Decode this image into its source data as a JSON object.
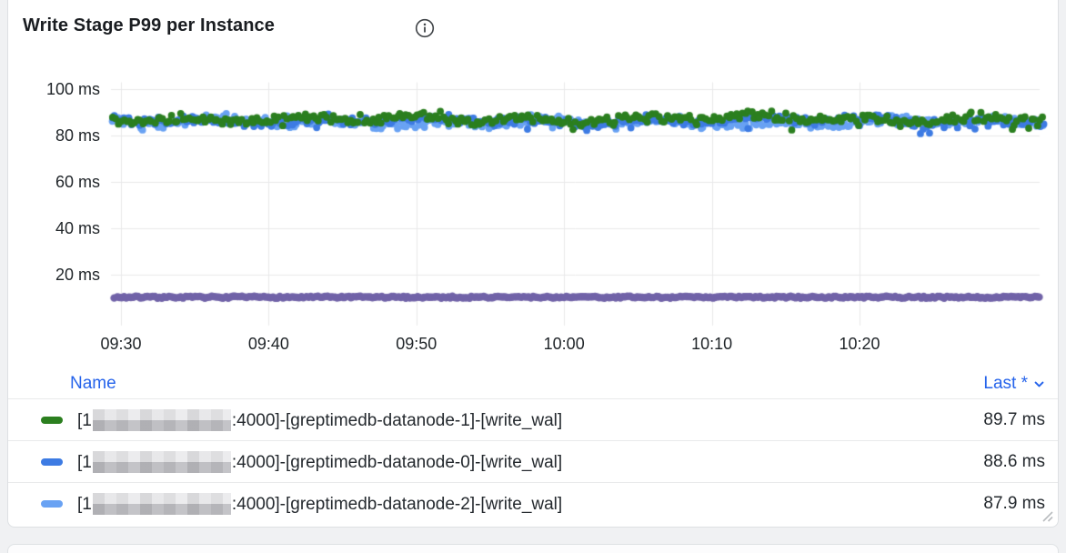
{
  "panel": {
    "title": "Write Stage P99 per Instance",
    "info_icon": "info-circle"
  },
  "chart_data": {
    "type": "scatter",
    "title": "Write Stage P99 per Instance",
    "unit": "ms",
    "grid": true,
    "ylim": [
      0,
      107
    ],
    "x_ticks": [
      "09:30",
      "09:40",
      "09:50",
      "10:00",
      "10:10",
      "10:20"
    ],
    "x_tick_interval_minutes": 10,
    "y_ticks": [
      {
        "label": "100 ms",
        "value": 100
      },
      {
        "label": "80 ms",
        "value": 80
      },
      {
        "label": "60 ms",
        "value": 60
      },
      {
        "label": "40 ms",
        "value": 40
      },
      {
        "label": "20 ms",
        "value": 20
      }
    ],
    "series": [
      {
        "name": "[1…:4000]-[greptimedb-datanode-1]-[write_wal]",
        "color": "#2b7f1f",
        "style": "points",
        "approx_mean_ms": 87.2,
        "approx_spread_ms": 3.0,
        "last_ms": 89.7
      },
      {
        "name": "[1…:4000]-[greptimedb-datanode-0]-[write_wal]",
        "color": "#3d7be3",
        "style": "points",
        "approx_mean_ms": 86.4,
        "approx_spread_ms": 3.0,
        "last_ms": 88.6
      },
      {
        "name": "[1…:4000]-[greptimedb-datanode-2]-[write_wal]",
        "color": "#69a2f3",
        "style": "points",
        "approx_mean_ms": 85.8,
        "approx_spread_ms": 2.8,
        "last_ms": 87.9
      },
      {
        "name": "",
        "color": "#7163a8",
        "style": "dense-band",
        "approx_mean_ms": 10.5,
        "approx_spread_ms": 0.6,
        "legend_visible": false
      }
    ]
  },
  "legend": {
    "name_header": "Name",
    "last_header": "Last *",
    "sort_icon": "chevron-down",
    "rows": [
      {
        "prefix": "[1",
        "redacted": true,
        "suffix": ":4000]-[greptimedb-datanode-1]-[write_wal]",
        "last": "89.7 ms",
        "color": "#2b7f1f"
      },
      {
        "prefix": "[1",
        "redacted": true,
        "suffix": ":4000]-[greptimedb-datanode-0]-[write_wal]",
        "last": "88.6 ms",
        "color": "#3d7be3"
      },
      {
        "prefix": "[1",
        "redacted": true,
        "suffix": ":4000]-[greptimedb-datanode-2]-[write_wal]",
        "last": "87.9 ms",
        "color": "#69a2f3"
      }
    ]
  },
  "colors": {
    "header_link": "#2563eb",
    "grid": "#e8e8e9",
    "axis_text": "#1f2428",
    "legend_text": "#24292e",
    "panel_border": "#dde0e3",
    "page_bg": "#f0f1f3"
  }
}
